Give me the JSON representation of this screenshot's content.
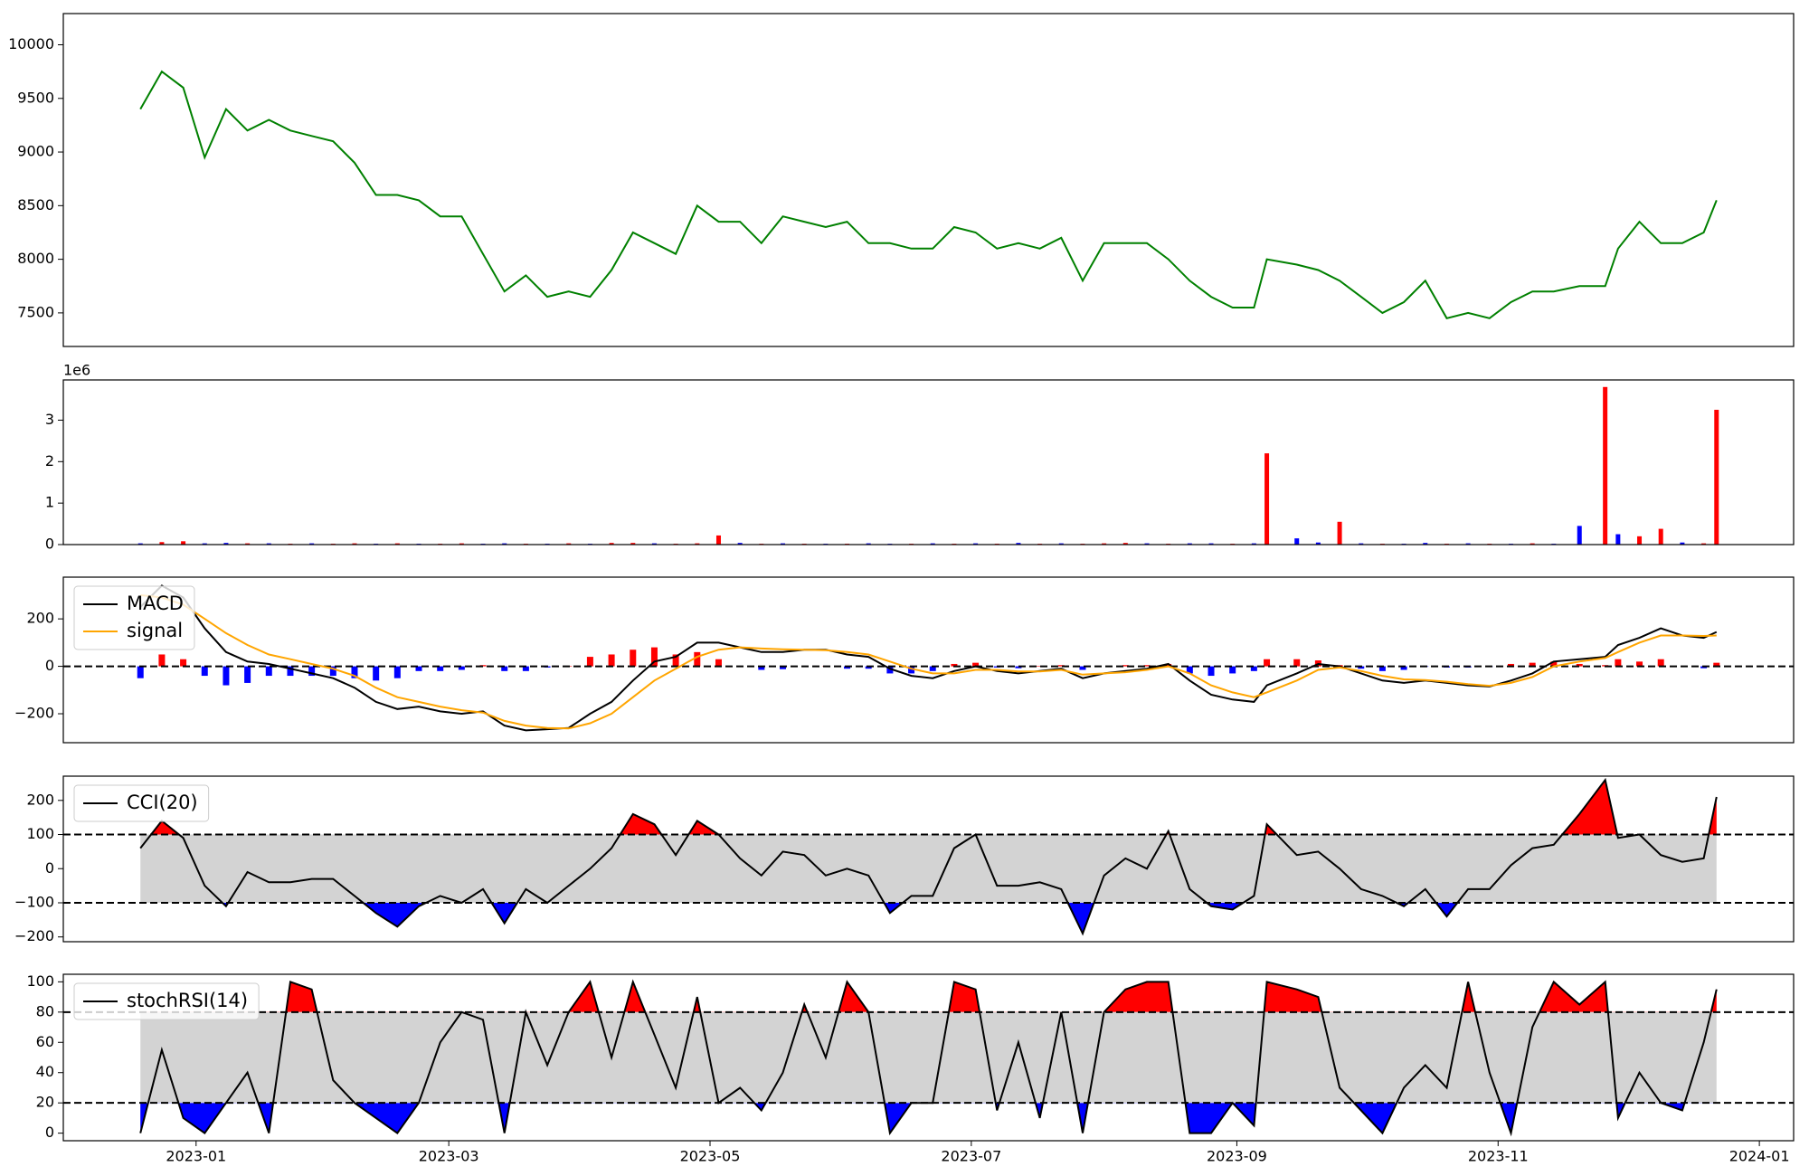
{
  "chart_data": [
    {
      "type": "line",
      "values": [
        9400,
        9750,
        9600,
        8950,
        9400,
        9200,
        9300,
        9200,
        9150,
        9100,
        8900,
        8600,
        8600,
        8550,
        8400,
        8400,
        8050,
        7700,
        7850,
        7650,
        7700,
        7650,
        7900,
        8250,
        8150,
        8050,
        8500,
        8350,
        8350,
        8150,
        8400,
        8350,
        8300,
        8350,
        8150,
        8150,
        8100,
        8100,
        8300,
        8250,
        8100,
        8150,
        8100,
        8200,
        7800,
        8150,
        8150,
        8150,
        8000,
        7800,
        7650,
        7550,
        7550,
        8000,
        7950,
        7900,
        7800,
        7650,
        7500,
        7600,
        7800,
        7450,
        7500,
        7450,
        7600,
        7700,
        7700,
        7750,
        7750,
        8100,
        8350,
        8150,
        8150,
        8250,
        8550
      ],
      "color": "green",
      "ylim": [
        7187,
        10291
      ],
      "yticks": [
        7500,
        8000,
        8500,
        9000,
        9500,
        10000
      ]
    },
    {
      "type": "bar",
      "offset_label": "1e6",
      "values": [
        0.03,
        0.06,
        0.08,
        0.03,
        0.04,
        0.03,
        0.03,
        0.02,
        0.03,
        0.02,
        0.03,
        0.02,
        0.03,
        0.02,
        0.02,
        0.03,
        0.02,
        0.03,
        0.02,
        0.02,
        0.03,
        0.02,
        0.04,
        0.04,
        0.03,
        0.02,
        0.03,
        0.22,
        0.04,
        0.02,
        0.03,
        0.02,
        0.02,
        0.02,
        0.03,
        0.02,
        0.02,
        0.03,
        0.02,
        0.03,
        0.02,
        0.04,
        0.02,
        0.03,
        0.02,
        0.03,
        0.04,
        0.03,
        0.02,
        0.03,
        0.03,
        0.02,
        0.03,
        2.2,
        0.15,
        0.05,
        0.55,
        0.03,
        0.02,
        0.02,
        0.04,
        0.02,
        0.03,
        0.02,
        0.02,
        0.03,
        0.02,
        0.45,
        3.8,
        0.25,
        0.2,
        0.38,
        0.05,
        0.03,
        3.25
      ],
      "colors": [
        "blue",
        "red",
        "red",
        "blue",
        "blue",
        "red",
        "blue",
        "red",
        "blue",
        "red",
        "red",
        "blue",
        "red",
        "blue",
        "red",
        "red",
        "blue",
        "blue",
        "red",
        "blue",
        "red",
        "blue",
        "red",
        "red",
        "blue",
        "red",
        "red",
        "red",
        "blue",
        "red",
        "blue",
        "red",
        "blue",
        "red",
        "blue",
        "blue",
        "red",
        "blue",
        "red",
        "blue",
        "red",
        "blue",
        "red",
        "blue",
        "red",
        "red",
        "red",
        "blue",
        "red",
        "blue",
        "blue",
        "red",
        "blue",
        "red",
        "blue",
        "blue",
        "red",
        "blue",
        "red",
        "blue",
        "blue",
        "red",
        "blue",
        "red",
        "blue",
        "red",
        "blue",
        "blue",
        "red",
        "blue",
        "red",
        "red",
        "blue",
        "red",
        "red"
      ],
      "ylim": [
        0,
        3.97
      ],
      "yticks": [
        0,
        1,
        2,
        3
      ]
    },
    {
      "type": "macd",
      "series": [
        {
          "name": "MACD",
          "color": "black",
          "values": [
            250,
            340,
            290,
            160,
            60,
            20,
            10,
            -10,
            -30,
            -50,
            -90,
            -150,
            -180,
            -170,
            -190,
            -200,
            -190,
            -250,
            -270,
            -265,
            -260,
            -200,
            -150,
            -60,
            20,
            40,
            100,
            100,
            80,
            60,
            60,
            70,
            70,
            50,
            40,
            -10,
            -40,
            -50,
            -20,
            0,
            -20,
            -30,
            -20,
            -10,
            -50,
            -30,
            -20,
            -10,
            10,
            -60,
            -120,
            -140,
            -150,
            -80,
            -30,
            10,
            0,
            -30,
            -60,
            -70,
            -60,
            -70,
            -80,
            -85,
            -60,
            -30,
            20,
            30,
            40,
            90,
            120,
            160,
            130,
            120,
            145
          ]
        },
        {
          "name": "signal",
          "color": "orange",
          "values": [
            300,
            290,
            260,
            200,
            140,
            90,
            50,
            30,
            10,
            -10,
            -40,
            -90,
            -130,
            -150,
            -170,
            -185,
            -195,
            -230,
            -250,
            -260,
            -262,
            -240,
            -200,
            -130,
            -60,
            -10,
            40,
            70,
            80,
            75,
            72,
            70,
            68,
            60,
            50,
            20,
            -10,
            -30,
            -30,
            -15,
            -15,
            -22,
            -22,
            -15,
            -35,
            -30,
            -25,
            -15,
            0,
            -30,
            -80,
            -110,
            -130,
            -110,
            -60,
            -15,
            -5,
            -20,
            -40,
            -55,
            -58,
            -65,
            -75,
            -82,
            -70,
            -45,
            0,
            20,
            35,
            60,
            100,
            130,
            130,
            128,
            130
          ]
        }
      ],
      "histogram": {
        "up_color": "red",
        "down_color": "blue",
        "values": [
          -50,
          50,
          30,
          -40,
          -80,
          -70,
          -40,
          -40,
          -40,
          -40,
          -50,
          -60,
          -50,
          -20,
          -20,
          -15,
          5,
          -20,
          -20,
          -5,
          2,
          40,
          50,
          70,
          80,
          50,
          60,
          30,
          0,
          -15,
          -12,
          0,
          2,
          -10,
          -10,
          -30,
          -30,
          -20,
          10,
          15,
          -5,
          -8,
          2,
          5,
          -15,
          0,
          5,
          5,
          10,
          -30,
          -40,
          -30,
          -20,
          30,
          30,
          25,
          5,
          -10,
          -20,
          -15,
          -2,
          -5,
          -5,
          -3,
          10,
          15,
          20,
          10,
          5,
          30,
          20,
          30,
          0,
          -8,
          15
        ]
      },
      "reference_lines": [
        0
      ],
      "legend": "upper left",
      "ylim": [
        -322,
        376
      ],
      "yticks": [
        {
          "value": -200,
          "label": "−200"
        },
        0,
        200
      ]
    },
    {
      "type": "oscillator",
      "series": [
        {
          "name": "CCI(20)",
          "color": "black",
          "values": [
            60,
            140,
            90,
            -50,
            -110,
            -10,
            -40,
            -40,
            -30,
            -30,
            -80,
            -130,
            -170,
            -110,
            -80,
            -100,
            -60,
            -160,
            -60,
            -100,
            -50,
            0,
            60,
            160,
            130,
            40,
            140,
            100,
            30,
            -20,
            50,
            40,
            -20,
            0,
            -20,
            -130,
            -80,
            -80,
            60,
            100,
            -50,
            -50,
            -40,
            -60,
            -190,
            -20,
            30,
            0,
            110,
            -60,
            -110,
            -120,
            -80,
            130,
            40,
            50,
            0,
            -60,
            -80,
            -110,
            -60,
            -140,
            -60,
            -60,
            10,
            60,
            70,
            160,
            260,
            90,
            100,
            40,
            20,
            30,
            210
          ]
        }
      ],
      "reference_lines": [
        -100,
        100
      ],
      "band_color": "lightgray",
      "over_color": "red",
      "under_color": "blue",
      "legend": "upper left",
      "ylim": [
        -214,
        271
      ],
      "yticks": [
        {
          "value": -200,
          "label": "−200"
        },
        {
          "value": -100,
          "label": "−100"
        },
        0,
        100,
        200
      ]
    },
    {
      "type": "oscillator",
      "series": [
        {
          "name": "stochRSI(14)",
          "color": "black",
          "values": [
            0,
            55,
            10,
            0,
            20,
            40,
            0,
            100,
            95,
            35,
            20,
            10,
            0,
            20,
            60,
            80,
            75,
            0,
            80,
            45,
            80,
            100,
            50,
            100,
            65,
            30,
            90,
            20,
            30,
            15,
            40,
            85,
            50,
            100,
            80,
            0,
            20,
            20,
            100,
            95,
            15,
            60,
            10,
            80,
            0,
            80,
            95,
            100,
            100,
            0,
            0,
            20,
            5,
            100,
            95,
            90,
            30,
            15,
            0,
            30,
            45,
            30,
            100,
            40,
            0,
            70,
            100,
            85,
            100,
            10,
            40,
            20,
            15,
            60,
            95
          ]
        }
      ],
      "reference_lines": [
        20,
        80
      ],
      "band_color": "lightgray",
      "over_color": "red",
      "under_color": "blue",
      "legend": "upper left",
      "ylim": [
        -5,
        105
      ],
      "yticks": [
        0,
        20,
        40,
        60,
        80,
        100
      ],
      "x": [
        -13,
        -8,
        -3,
        2,
        7,
        12,
        17,
        22,
        27,
        32,
        37,
        42,
        47,
        52,
        57,
        62,
        67,
        72,
        77,
        82,
        87,
        92,
        97,
        102,
        107,
        112,
        117,
        122,
        127,
        132,
        137,
        142,
        147,
        152,
        157,
        162,
        167,
        172,
        177,
        182,
        187,
        192,
        197,
        202,
        207,
        212,
        217,
        222,
        227,
        232,
        237,
        242,
        247,
        250,
        257,
        262,
        267,
        272,
        277,
        282,
        287,
        292,
        297,
        302,
        307,
        312,
        317,
        323,
        329,
        332,
        337,
        342,
        347,
        352,
        355
      ],
      "xlim": [
        -31,
        373
      ],
      "xticks": [
        {
          "value": 0,
          "label": "2023-01"
        },
        {
          "value": 59,
          "label": "2023-03"
        },
        {
          "value": 120,
          "label": "2023-05"
        },
        {
          "value": 181,
          "label": "2023-07"
        },
        {
          "value": 243,
          "label": "2023-09"
        },
        {
          "value": 304,
          "label": "2023-11"
        },
        {
          "value": 365,
          "label": "2024-01"
        }
      ]
    }
  ]
}
